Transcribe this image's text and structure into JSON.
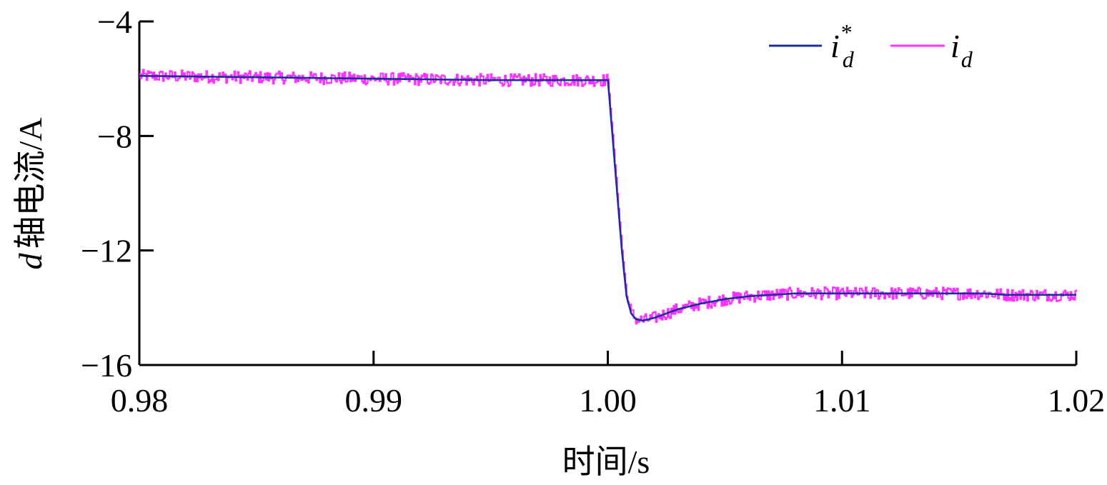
{
  "chart_data": {
    "type": "line",
    "title": "",
    "xlabel": "时间/s",
    "ylabel_var": "d",
    "ylabel_text": "轴电流/A",
    "xlim": [
      0.98,
      1.02
    ],
    "ylim": [
      -16,
      -4
    ],
    "x_ticks": [
      0.98,
      0.99,
      1.0,
      1.01,
      1.02
    ],
    "x_tick_labels": [
      "0.98",
      "0.99",
      "1.00",
      "1.01",
      "1.02"
    ],
    "y_ticks": [
      -4,
      -8,
      -12,
      -16
    ],
    "y_tick_labels": [
      "−4",
      "−8",
      "−12",
      "−16"
    ],
    "grid": false,
    "legend_position": "top-right",
    "series": [
      {
        "name": "i_d^*",
        "legend_main": "i",
        "legend_sub": "d",
        "legend_sup": "*",
        "color": "#1a2f9c",
        "x": [
          0.98,
          0.985,
          0.99,
          0.995,
          1.0,
          1.00005,
          1.0002,
          1.0004,
          1.0006,
          1.0008,
          1.001,
          1.0012,
          1.0015,
          1.002,
          1.0025,
          1.003,
          1.004,
          1.005,
          1.006,
          1.007,
          1.008,
          1.009,
          1.01,
          1.011,
          1.012,
          1.013,
          1.014,
          1.015,
          1.016,
          1.017,
          1.018,
          1.019,
          1.02
        ],
        "y": [
          -5.9,
          -5.95,
          -6.0,
          -6.05,
          -6.05,
          -6.5,
          -8.0,
          -10.0,
          -12.0,
          -13.6,
          -14.2,
          -14.4,
          -14.45,
          -14.35,
          -14.2,
          -14.05,
          -13.85,
          -13.7,
          -13.6,
          -13.55,
          -13.5,
          -13.5,
          -13.5,
          -13.5,
          -13.5,
          -13.5,
          -13.5,
          -13.5,
          -13.5,
          -13.55,
          -13.55,
          -13.55,
          -13.55
        ]
      },
      {
        "name": "i_d",
        "legend_main": "i",
        "legend_sub": "d",
        "color": "#ff33ff",
        "noise_amplitude": 0.22,
        "x": [
          0.98,
          0.985,
          0.99,
          0.995,
          1.0,
          1.00005,
          1.0002,
          1.0004,
          1.0006,
          1.0008,
          1.001,
          1.0012,
          1.0015,
          1.002,
          1.0025,
          1.003,
          1.004,
          1.005,
          1.006,
          1.007,
          1.008,
          1.009,
          1.01,
          1.011,
          1.012,
          1.013,
          1.014,
          1.015,
          1.016,
          1.017,
          1.018,
          1.019,
          1.02
        ],
        "y": [
          -5.9,
          -5.95,
          -6.0,
          -6.05,
          -6.05,
          -6.5,
          -8.0,
          -10.0,
          -12.0,
          -13.6,
          -14.2,
          -14.4,
          -14.45,
          -14.35,
          -14.2,
          -14.05,
          -13.85,
          -13.7,
          -13.6,
          -13.55,
          -13.5,
          -13.5,
          -13.5,
          -13.5,
          -13.5,
          -13.5,
          -13.5,
          -13.5,
          -13.5,
          -13.55,
          -13.55,
          -13.55,
          -13.55
        ]
      }
    ]
  }
}
